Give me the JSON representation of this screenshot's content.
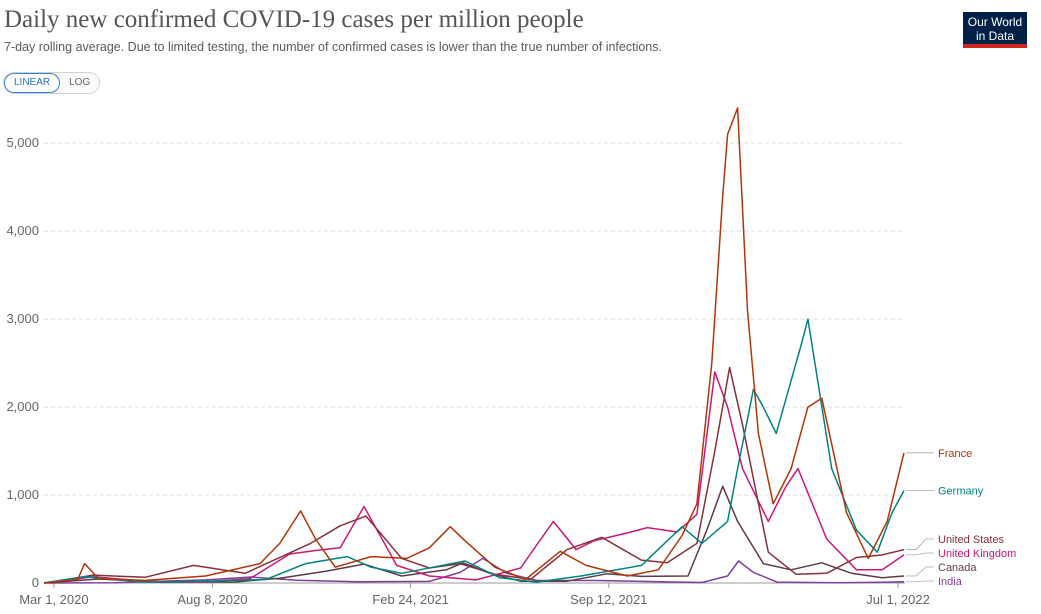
{
  "header": {
    "title": "Daily new confirmed COVID-19 cases per million people",
    "subtitle": "7-day rolling average. Due to limited testing, the number of confirmed cases is lower than the true number of infections."
  },
  "logo": {
    "line1": "Our World",
    "line2": "in Data",
    "color": "#002147",
    "accent": "#ce261e"
  },
  "scale_toggle": {
    "options": [
      "LINEAR",
      "LOG"
    ],
    "selected": "LINEAR",
    "accent": "#3b7dd8"
  },
  "chart_data": {
    "type": "line",
    "title": "Daily new confirmed COVID-19 cases per million people",
    "ylim": [
      0,
      5400
    ],
    "y_ticks": [
      0,
      1000,
      2000,
      3000,
      4000,
      5000
    ],
    "y_tick_labels": [
      "0",
      "1,000",
      "2,000",
      "3,000",
      "4,000",
      "5,000"
    ],
    "x_domain": [
      "2020-02-20",
      "2022-07-08"
    ],
    "x_ticks": [
      {
        "date": "2020-03-01",
        "label": "Mar 1, 2020"
      },
      {
        "date": "2020-08-08",
        "label": "Aug 8, 2020"
      },
      {
        "date": "2021-02-24",
        "label": "Feb 24, 2021"
      },
      {
        "date": "2021-09-12",
        "label": "Sep 12, 2021"
      },
      {
        "date": "2022-07-01",
        "label": "Jul 1, 2022"
      }
    ],
    "grid": true,
    "series": [
      {
        "name": "India",
        "color": "#7e3fa0",
        "x": [
          "2020-02-20",
          "2020-05-01",
          "2020-08-01",
          "2020-09-16",
          "2020-11-01",
          "2021-01-01",
          "2021-03-15",
          "2021-04-15",
          "2021-05-08",
          "2021-06-01",
          "2021-07-01",
          "2021-09-01",
          "2021-12-15",
          "2022-01-10",
          "2022-01-21",
          "2022-02-05",
          "2022-03-01",
          "2022-05-01",
          "2022-06-15",
          "2022-07-07"
        ],
        "values": [
          0,
          3,
          35,
          68,
          32,
          14,
          18,
          120,
          280,
          110,
          30,
          28,
          6,
          80,
          250,
          120,
          10,
          3,
          8,
          14
        ]
      },
      {
        "name": "Canada",
        "color": "#5c3a4a",
        "x": [
          "2020-02-20",
          "2020-04-15",
          "2020-06-15",
          "2020-09-01",
          "2020-10-15",
          "2020-12-01",
          "2021-01-08",
          "2021-02-15",
          "2021-04-01",
          "2021-04-18",
          "2021-05-15",
          "2021-06-15",
          "2021-08-01",
          "2021-09-10",
          "2021-10-15",
          "2021-12-01",
          "2021-12-20",
          "2022-01-05",
          "2022-01-20",
          "2022-02-15",
          "2022-03-15",
          "2022-04-15",
          "2022-05-15",
          "2022-06-15",
          "2022-07-07"
        ],
        "values": [
          0,
          45,
          10,
          12,
          55,
          135,
          215,
          80,
          150,
          230,
          110,
          20,
          20,
          105,
          75,
          80,
          600,
          1100,
          700,
          220,
          150,
          230,
          110,
          60,
          80
        ]
      },
      {
        "name": "United Kingdom",
        "color": "#cc1777",
        "x": [
          "2020-02-20",
          "2020-04-10",
          "2020-06-01",
          "2020-08-01",
          "2020-09-15",
          "2020-10-25",
          "2020-11-20",
          "2020-12-15",
          "2021-01-08",
          "2021-02-10",
          "2021-03-15",
          "2021-05-01",
          "2021-06-15",
          "2021-07-18",
          "2021-08-10",
          "2021-08-28",
          "2021-10-01",
          "2021-10-21",
          "2021-11-20",
          "2021-12-10",
          "2021-12-28",
          "2022-01-10",
          "2022-01-25",
          "2022-02-20",
          "2022-03-10",
          "2022-03-22",
          "2022-04-20",
          "2022-05-20",
          "2022-06-15",
          "2022-07-07"
        ],
        "values": [
          0,
          70,
          20,
          15,
          50,
          330,
          370,
          400,
          870,
          200,
          80,
          35,
          170,
          700,
          380,
          480,
          570,
          630,
          580,
          780,
          2400,
          2000,
          1300,
          700,
          1100,
          1300,
          500,
          150,
          150,
          320
        ]
      },
      {
        "name": "United States",
        "color": "#883039",
        "x": [
          "2020-02-20",
          "2020-04-10",
          "2020-06-01",
          "2020-07-20",
          "2020-09-10",
          "2020-11-15",
          "2020-12-15",
          "2021-01-10",
          "2021-02-15",
          "2021-03-15",
          "2021-04-15",
          "2021-05-20",
          "2021-06-25",
          "2021-08-01",
          "2021-09-05",
          "2021-10-15",
          "2021-11-10",
          "2021-12-10",
          "2021-12-28",
          "2022-01-12",
          "2022-01-25",
          "2022-02-20",
          "2022-03-20",
          "2022-04-20",
          "2022-05-20",
          "2022-06-15",
          "2022-07-07"
        ],
        "values": [
          0,
          90,
          65,
          200,
          110,
          450,
          650,
          760,
          280,
          170,
          220,
          100,
          40,
          380,
          520,
          260,
          230,
          450,
          1500,
          2450,
          1800,
          350,
          100,
          110,
          290,
          320,
          380
        ]
      },
      {
        "name": "Germany",
        "color": "#00847e",
        "x": [
          "2020-02-20",
          "2020-04-01",
          "2020-06-01",
          "2020-08-01",
          "2020-10-01",
          "2020-11-10",
          "2020-12-22",
          "2021-01-15",
          "2021-02-15",
          "2021-04-20",
          "2021-05-25",
          "2021-07-01",
          "2021-08-15",
          "2021-10-15",
          "2021-11-25",
          "2021-12-15",
          "2022-01-10",
          "2022-01-20",
          "2022-02-05",
          "2022-02-15",
          "2022-02-28",
          "2022-03-25",
          "2022-04-01",
          "2022-04-25",
          "2022-05-20",
          "2022-06-10",
          "2022-06-25",
          "2022-07-07"
        ],
        "values": [
          0,
          70,
          10,
          20,
          40,
          220,
          300,
          180,
          110,
          250,
          60,
          10,
          80,
          200,
          640,
          450,
          700,
          1300,
          2200,
          2000,
          1700,
          2700,
          3000,
          1300,
          600,
          350,
          800,
          1050
        ]
      },
      {
        "name": "France",
        "color": "#b13507",
        "x": [
          "2020-02-20",
          "2020-03-25",
          "2020-04-01",
          "2020-04-15",
          "2020-06-01",
          "2020-08-01",
          "2020-09-25",
          "2020-10-15",
          "2020-11-05",
          "2020-11-20",
          "2020-12-10",
          "2021-01-15",
          "2021-02-20",
          "2021-03-15",
          "2021-04-05",
          "2021-04-20",
          "2021-05-20",
          "2021-06-20",
          "2021-07-25",
          "2021-08-20",
          "2021-10-01",
          "2021-11-01",
          "2021-11-25",
          "2021-12-10",
          "2021-12-25",
          "2022-01-05",
          "2022-01-10",
          "2022-01-20",
          "2022-01-30",
          "2022-02-10",
          "2022-02-25",
          "2022-03-15",
          "2022-04-01",
          "2022-04-15",
          "2022-05-10",
          "2022-06-01",
          "2022-06-20",
          "2022-07-07"
        ],
        "values": [
          0,
          40,
          220,
          50,
          30,
          80,
          220,
          450,
          820,
          500,
          180,
          300,
          280,
          400,
          640,
          480,
          180,
          40,
          360,
          200,
          80,
          150,
          540,
          900,
          2500,
          4400,
          5100,
          5400,
          3100,
          1700,
          900,
          1300,
          2000,
          2100,
          800,
          280,
          700,
          1480
        ]
      }
    ],
    "legend_order": [
      "France",
      "Germany",
      "United States",
      "United Kingdom",
      "Canada",
      "India"
    ],
    "legend_placement": "right, at each series end"
  }
}
